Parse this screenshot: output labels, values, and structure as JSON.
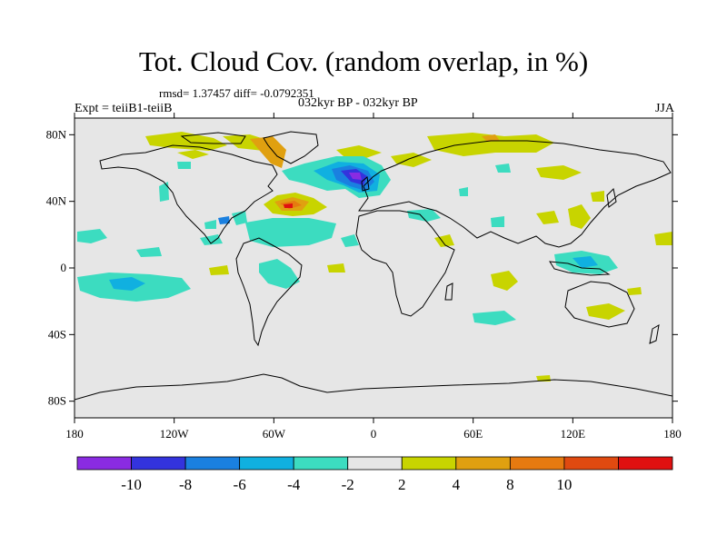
{
  "title": "Tot. Cloud Cov. (random overlap, in %)",
  "stats_line": "rmsd= 1.37457 diff= -0.0792351",
  "left_label": "Expt = teiiB1-teiiB",
  "center_label": "032kyr BP - 032kyr BP",
  "right_label": "JJA",
  "map": {
    "projection": "cylindrical equidistant",
    "background_color": "#e6e6e6",
    "lon_range": [
      -180,
      180
    ],
    "lat_range": [
      -90,
      90
    ],
    "lat_labels": [
      {
        "value": 80,
        "text": "80N"
      },
      {
        "value": 40,
        "text": "40N"
      },
      {
        "value": 0,
        "text": "0"
      },
      {
        "value": -40,
        "text": "40S"
      },
      {
        "value": -80,
        "text": "80S"
      }
    ],
    "lon_labels": [
      {
        "value": -180,
        "text": "180"
      },
      {
        "value": -120,
        "text": "120W"
      },
      {
        "value": -60,
        "text": "60W"
      },
      {
        "value": 0,
        "text": "0"
      },
      {
        "value": 60,
        "text": "60E"
      },
      {
        "value": 120,
        "text": "120E"
      },
      {
        "value": 180,
        "text": "180"
      }
    ]
  },
  "colorbar": {
    "colors": [
      "#8a2be2",
      "#3333dd",
      "#1a80e0",
      "#10b0e0",
      "#3cdcc0",
      "#e6e6e6",
      "#c8d400",
      "#e0a010",
      "#e67a10",
      "#e04a10",
      "#e01010"
    ],
    "labels": [
      "-10",
      "-8",
      "-6",
      "-4",
      "-2",
      "2",
      "4",
      "8",
      "10"
    ]
  }
}
